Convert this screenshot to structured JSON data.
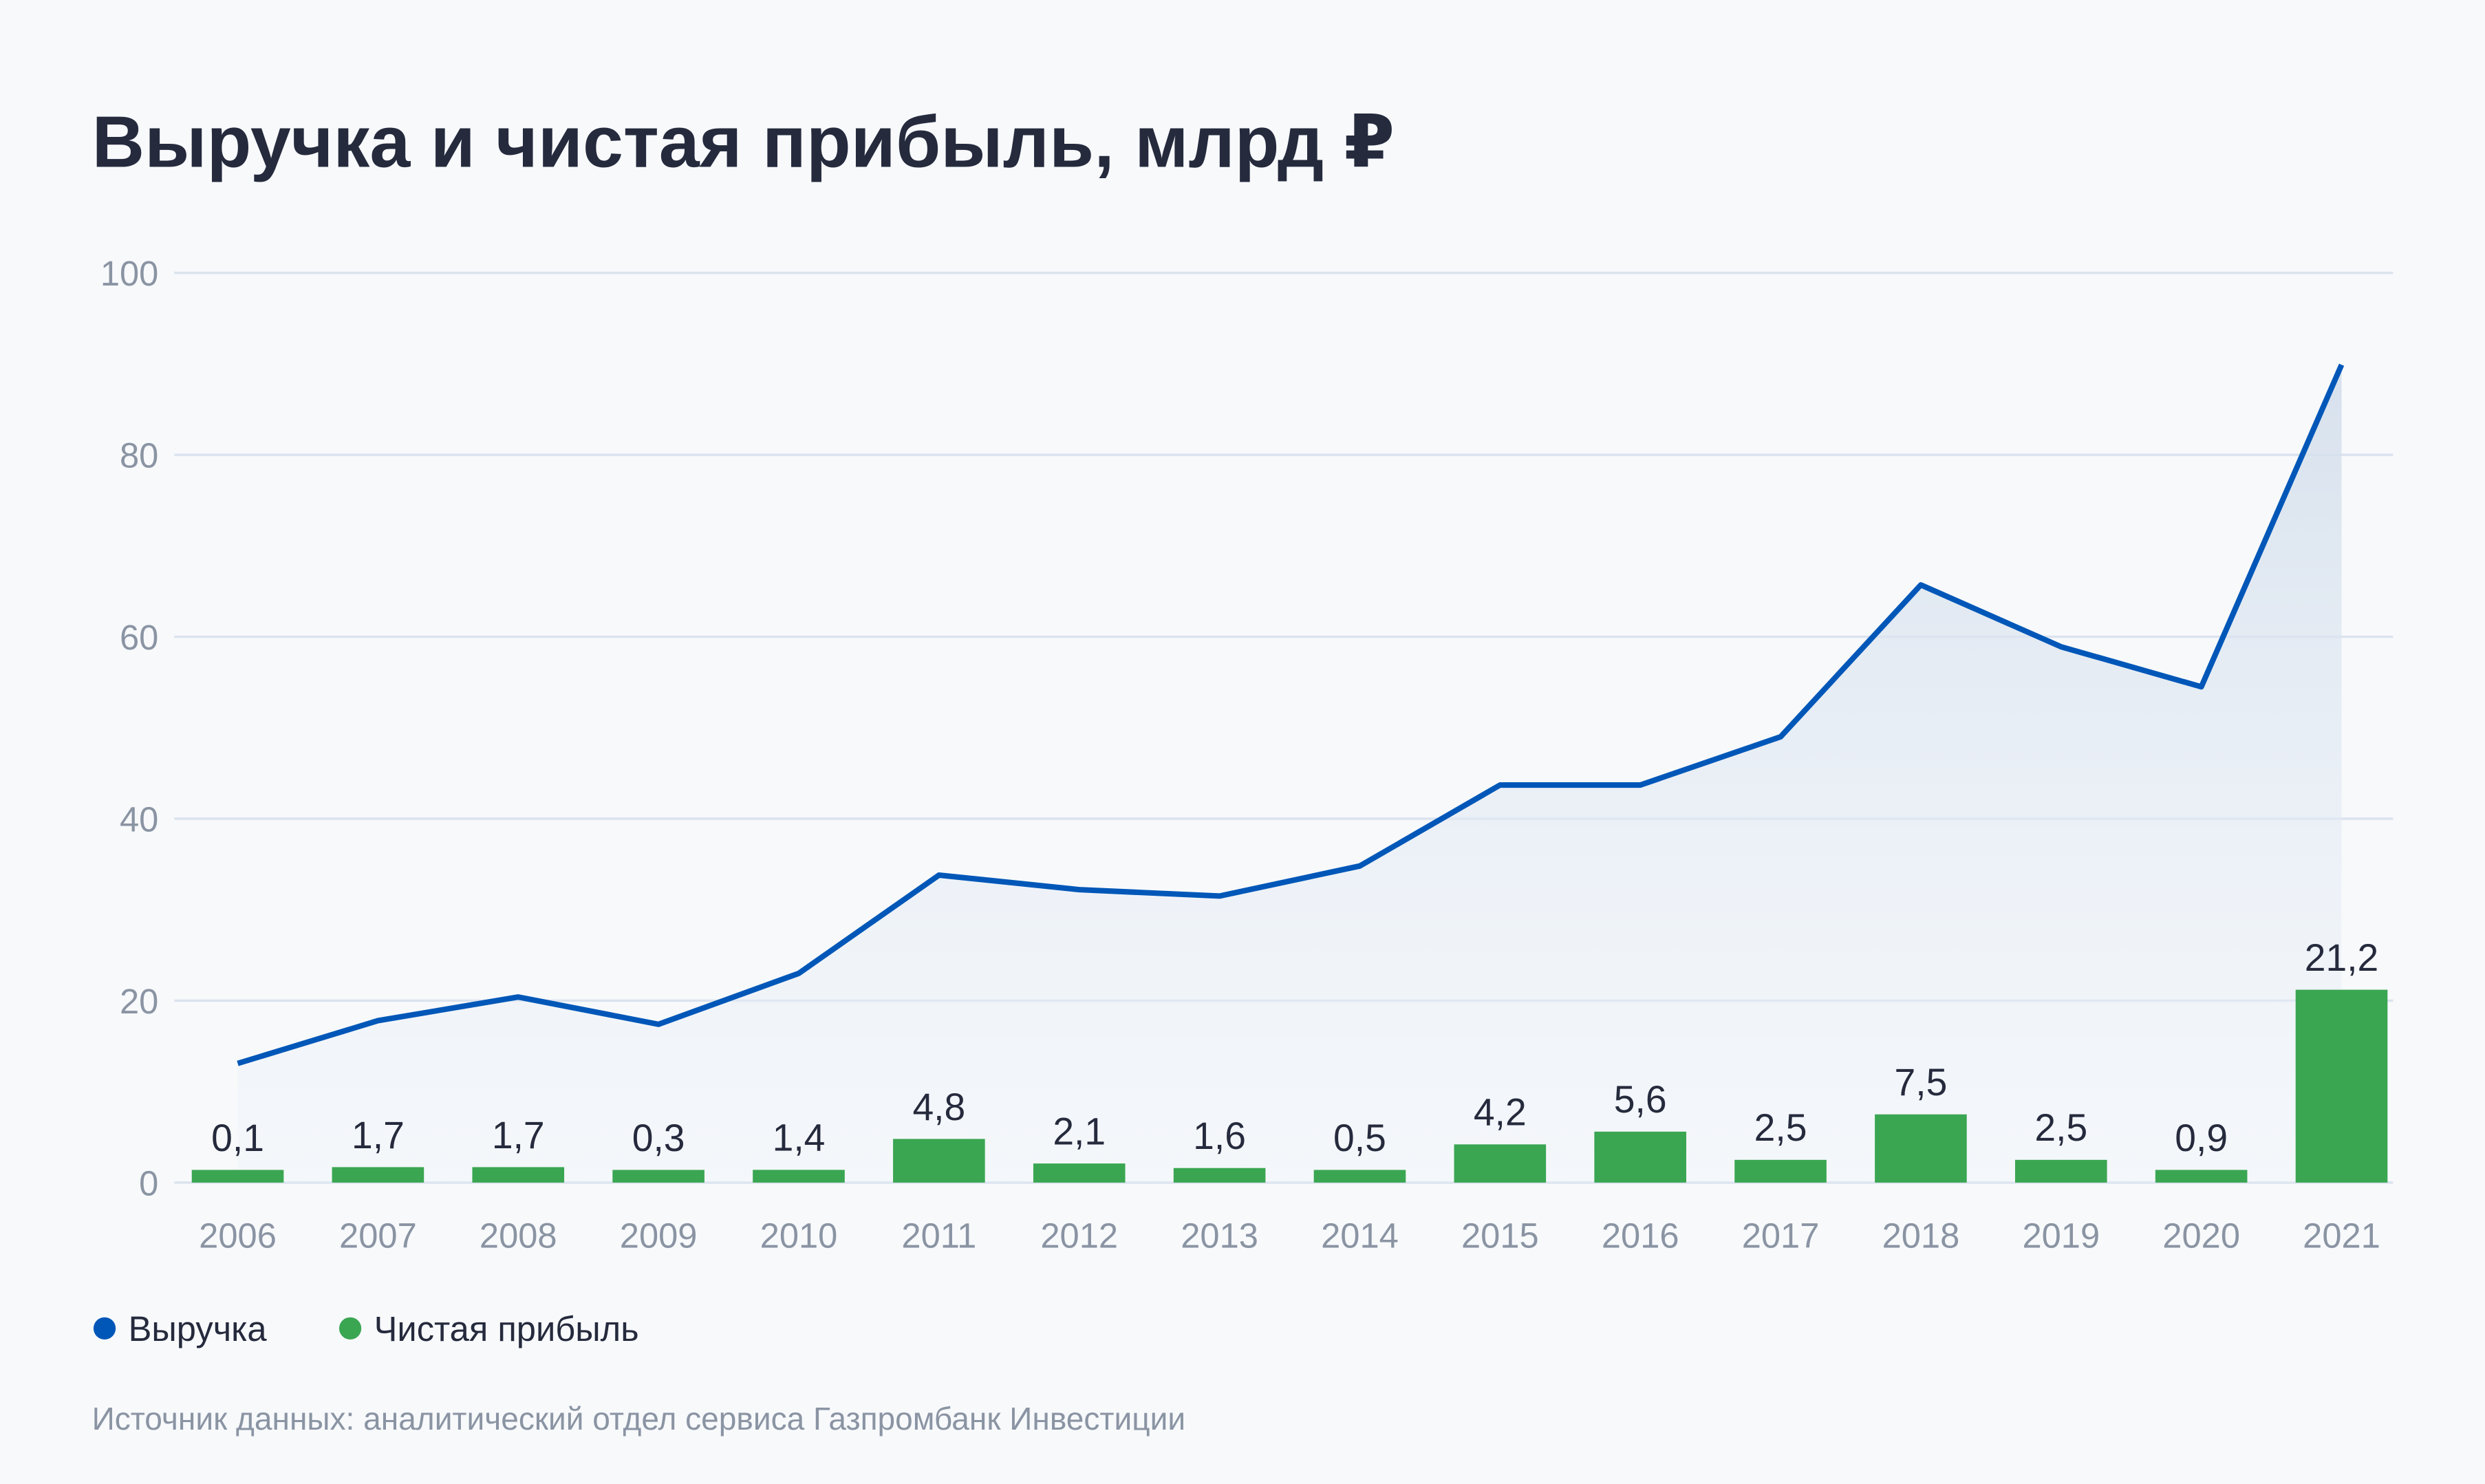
{
  "chart_data": {
    "type": "bar+line",
    "title": "Выручка и чистая прибыль, млрд ₽",
    "categories": [
      "2006",
      "2007",
      "2008",
      "2009",
      "2010",
      "2011",
      "2012",
      "2013",
      "2014",
      "2015",
      "2016",
      "2017",
      "2018",
      "2019",
      "2020",
      "2021"
    ],
    "series": [
      {
        "name": "Выручка",
        "type": "line",
        "color": "#0057b8",
        "values": [
          13.1,
          17.8,
          20.4,
          17.4,
          23.0,
          33.8,
          32.2,
          31.5,
          34.8,
          43.7,
          43.7,
          49.0,
          65.7,
          58.9,
          54.5,
          89.9
        ]
      },
      {
        "name": "Чистая прибыль",
        "type": "bar",
        "color": "#3aa652",
        "values": [
          0.1,
          1.7,
          1.7,
          0.3,
          1.4,
          4.8,
          2.1,
          1.6,
          0.5,
          4.2,
          5.6,
          2.5,
          7.5,
          2.5,
          0.9,
          21.2
        ],
        "labels": [
          "0,1",
          "1,7",
          "1,7",
          "0,3",
          "1,4",
          "4,8",
          "2,1",
          "1,6",
          "0,5",
          "4,2",
          "5,6",
          "2,5",
          "7,5",
          "2,5",
          "0,9",
          "21,2"
        ]
      }
    ],
    "yticks": [
      "0",
      "20",
      "40",
      "60",
      "80",
      "100"
    ],
    "ylim": [
      0,
      100
    ],
    "grid": true,
    "legend_position": "bottom-left",
    "source": "Источник данных: аналитический отдел сервиса Газпромбанк Инвестиции"
  }
}
